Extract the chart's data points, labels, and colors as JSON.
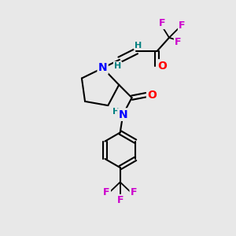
{
  "bg_color": "#e8e8e8",
  "atom_colors": {
    "C": "#000000",
    "N": "#0000ff",
    "O": "#ff0000",
    "F": "#cc00cc",
    "H": "#008080"
  },
  "bond_color": "#000000"
}
